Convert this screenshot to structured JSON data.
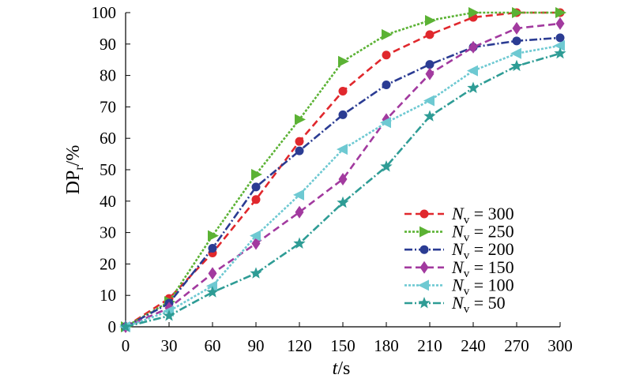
{
  "chart_data": {
    "type": "line",
    "xlabel_italic": "t",
    "xlabel_rest": "/s",
    "ylabel_main": "DP",
    "ylabel_sub": "r",
    "ylabel_rest": "/%",
    "xlim": [
      0,
      300
    ],
    "ylim": [
      0,
      100
    ],
    "xticks": [
      "0",
      "30",
      "60",
      "90",
      "120",
      "150",
      "180",
      "210",
      "240",
      "270",
      "300"
    ],
    "yticks": [
      "0",
      "10",
      "20",
      "30",
      "40",
      "50",
      "60",
      "70",
      "80",
      "90",
      "100"
    ],
    "legend_placement": "bottom-right",
    "x": [
      0,
      30,
      60,
      90,
      120,
      150,
      180,
      210,
      240,
      270,
      300
    ],
    "series": [
      {
        "name": "Nv = 300",
        "label_var": "N",
        "label_sub": "v",
        "label_val": "= 300",
        "color": "#e0282d",
        "marker": "circle",
        "dash": "9,5",
        "values": [
          0,
          9,
          23.5,
          40.5,
          59,
          75,
          86.5,
          93,
          98.5,
          100,
          100
        ]
      },
      {
        "name": "Nv = 250",
        "label_var": "N",
        "label_sub": "v",
        "label_val": "= 250",
        "color": "#5bb234",
        "marker": "triangle-right",
        "dash": "3,2",
        "values": [
          0,
          8,
          29,
          48.5,
          66,
          84.5,
          93,
          97.5,
          100,
          100,
          100
        ]
      },
      {
        "name": "Nv = 200",
        "label_var": "N",
        "label_sub": "v",
        "label_val": "= 200",
        "color": "#2b3c93",
        "marker": "circle",
        "dash": "10,3,2,3",
        "values": [
          0,
          7.5,
          25,
          44.5,
          56,
          67.5,
          77,
          83.5,
          89,
          91,
          92
        ]
      },
      {
        "name": "Nv = 150",
        "label_var": "N",
        "label_sub": "v",
        "label_val": "= 150",
        "color": "#a23a9f",
        "marker": "diamond",
        "dash": "9,5",
        "values": [
          0,
          6,
          17,
          26.5,
          36.5,
          47,
          66,
          80.5,
          89,
          95,
          96.5
        ]
      },
      {
        "name": "Nv = 100",
        "label_var": "N",
        "label_sub": "v",
        "label_val": "= 100",
        "color": "#6ec9d2",
        "marker": "triangle-left",
        "dash": "3,2",
        "values": [
          0,
          5,
          13,
          29,
          42,
          56.5,
          65,
          72,
          81.5,
          87,
          89.5
        ]
      },
      {
        "name": "Nv = 50",
        "label_var": "N",
        "label_sub": "v",
        "label_val": "= 50",
        "color": "#2e9c95",
        "marker": "star",
        "dash": "10,3,2,3",
        "values": [
          0,
          3.5,
          11,
          17,
          26.5,
          39.5,
          51,
          67,
          76,
          83,
          87
        ]
      }
    ]
  }
}
